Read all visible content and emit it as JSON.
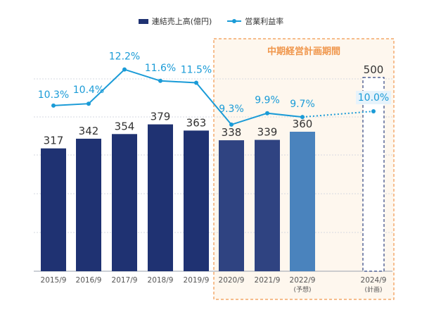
{
  "legend": {
    "bar_label": "連結売上高(億円)",
    "line_label": "営業利益率"
  },
  "plan_period_label": "中期経営計画期間",
  "colors": {
    "bar_actual": "#1f3272",
    "bar_recent": "#2f4381",
    "bar_forecast": "#4a83bd",
    "bar_plan_border": "#2f4381",
    "line": "#1a9bd7",
    "plan_accent": "#f0964b",
    "plan_fill": "#fef7ee",
    "grid": "#d6d9e0"
  },
  "chart_data": {
    "type": "bar",
    "categories": [
      "2015/9",
      "2016/9",
      "2017/9",
      "2018/9",
      "2019/9",
      "2020/9",
      "2021/9",
      "2022/9",
      "2024/9"
    ],
    "category_sublabels": [
      "",
      "",
      "",
      "",
      "",
      "",
      "",
      "(予想)",
      "(計画)"
    ],
    "series": [
      {
        "name": "連結売上高(億円)",
        "type": "bar",
        "values": [
          317,
          342,
          354,
          379,
          363,
          338,
          339,
          360,
          500
        ],
        "value_labels": [
          "317",
          "342",
          "354",
          "379",
          "363",
          "338",
          "339",
          "360",
          "500"
        ],
        "styles": [
          "actual",
          "actual",
          "actual",
          "actual",
          "actual",
          "recent",
          "recent",
          "forecast",
          "plan"
        ]
      },
      {
        "name": "営業利益率",
        "type": "line",
        "values": [
          10.3,
          10.4,
          12.2,
          11.6,
          11.5,
          9.3,
          9.9,
          9.7,
          10.0
        ],
        "value_labels": [
          "10.3%",
          "10.4%",
          "12.2%",
          "11.6%",
          "11.5%",
          "9.3%",
          "9.9%",
          "9.7%",
          "10.0%"
        ],
        "dotted_from_index": 7
      }
    ],
    "ylim": [
      0,
      500
    ],
    "grid": true,
    "legend_position": "top-center",
    "highlight_range": [
      5,
      8
    ]
  }
}
